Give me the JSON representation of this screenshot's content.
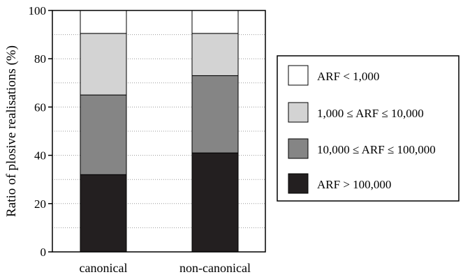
{
  "chart_data": {
    "type": "bar",
    "stacked": true,
    "xlabel": "",
    "ylabel": "Ratio of plosive realisations (%)",
    "ylim": [
      0,
      100
    ],
    "yticks": [
      "0",
      "20",
      "40",
      "60",
      "80",
      "100"
    ],
    "grid": "horizontal dotted, every 10",
    "legend_position": "right",
    "categories": [
      "canonical",
      "non-canonical"
    ],
    "series": [
      {
        "name": "ARF > 100,000",
        "color": "#231f20",
        "values": [
          32,
          41
        ]
      },
      {
        "name": "10,000 ≤ ARF ≤ 100,000",
        "color": "#858585",
        "values": [
          33,
          32
        ]
      },
      {
        "name": "1,000 ≤ ARF ≤ 10,000",
        "color": "#d3d3d3",
        "values": [
          25.5,
          17.5
        ]
      },
      {
        "name": "ARF < 1,000",
        "color": "#ffffff",
        "values": [
          9.5,
          9.5
        ]
      }
    ],
    "legend_order": [
      3,
      2,
      1,
      0
    ]
  }
}
